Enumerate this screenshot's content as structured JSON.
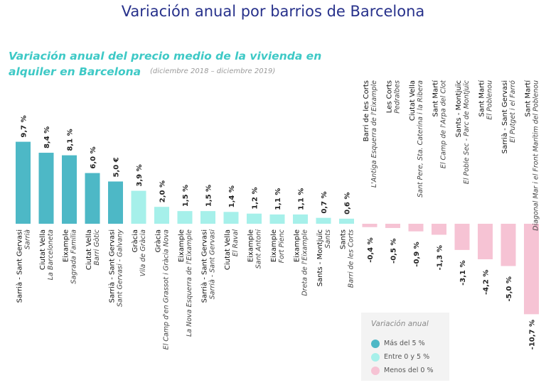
{
  "page_title": "Variación anual por barrios de Barcelona",
  "chart_title": "Variación anual del precio medio de la vivienda en alquiler en Barcelona",
  "chart_subtitle": "(diciembre 2018 – diciembre 2019)",
  "colors": {
    "high": "#4db8c6",
    "mid": "#a6f0ea",
    "negative": "#f6c3d4",
    "title": "#27318b",
    "chart_title": "#3ec9c6"
  },
  "legend": {
    "title": "Variación anual",
    "items": [
      {
        "label": "Más del 5 %",
        "color": "#4db8c6"
      },
      {
        "label": "Entre 0 y 5 %",
        "color": "#a6f0ea"
      },
      {
        "label": "Menos del 0 %",
        "color": "#f6c3d4"
      }
    ]
  },
  "chart_data": {
    "type": "bar",
    "categories": [
      {
        "district": "Sarrià - Sant Gervasi",
        "neighborhood": "Sarrià"
      },
      {
        "district": "Ciutat Vella",
        "neighborhood": "La Barceloneta"
      },
      {
        "district": "Eixample",
        "neighborhood": "Sagrada Família"
      },
      {
        "district": "Ciutat Vella",
        "neighborhood": "Barri Gòtic"
      },
      {
        "district": "Sarrià - Sant Gervasi",
        "neighborhood": "Sant Gervasi - Galvany"
      },
      {
        "district": "Gràcia",
        "neighborhood": "Vila de Gràcia"
      },
      {
        "district": "Gràcia",
        "neighborhood": "El Camp d'en Grassot i Gràcia Nova"
      },
      {
        "district": "Eixample",
        "neighborhood": "La Nova Esquerra de l'Eixample"
      },
      {
        "district": "Sarrià - Sant Gervasi",
        "neighborhood": "Sarrià - Sant Gervasi"
      },
      {
        "district": "Ciutat Vella",
        "neighborhood": "El Raval"
      },
      {
        "district": "Eixample",
        "neighborhood": "Sant Antoni"
      },
      {
        "district": "Eixample",
        "neighborhood": "Fort Pienc"
      },
      {
        "district": "Eixample",
        "neighborhood": "Dreta de l'Eixample"
      },
      {
        "district": "Sants - Montjuïc",
        "neighborhood": "Sants"
      },
      {
        "district": "Sants",
        "neighborhood": "Barri de les Corts"
      },
      {
        "district": "Barri de les Corts",
        "neighborhood": "L'Antiga Esquerra de l'Eixample"
      },
      {
        "district": "Les Corts",
        "neighborhood": "Pedralbes"
      },
      {
        "district": "Ciutat Vella",
        "neighborhood": "Sant Pere, Sta. Caterina i la Ribera"
      },
      {
        "district": "Sant Martí",
        "neighborhood": "El Camp de l'Arpa del Clot"
      },
      {
        "district": "Sants - Montjuïc",
        "neighborhood": "El Poble Sec - Parc de Montjuïc"
      },
      {
        "district": "Sant Martí",
        "neighborhood": "El Poblenou"
      },
      {
        "district": "Sarrià - Sant Gervasi",
        "neighborhood": "El Putget i el Farró"
      },
      {
        "district": "Sant Martí",
        "neighborhood": "Diagonal Mar i el Front Marítim del Poblenou"
      }
    ],
    "values": [
      9.7,
      8.4,
      8.1,
      6.0,
      5.0,
      3.9,
      2.0,
      1.5,
      1.5,
      1.4,
      1.2,
      1.1,
      1.1,
      0.7,
      0.6,
      -0.4,
      -0.5,
      -0.9,
      -1.3,
      -3.1,
      -4.2,
      -5.0,
      -10.7
    ],
    "value_labels": [
      "9,7 %",
      "8,4 %",
      "8,1 %",
      "6,0 %",
      "5,0 €",
      "3,9 %",
      "2,0 %",
      "1,5 %",
      "1,5 %",
      "1,4 %",
      "1,2 %",
      "1,1 %",
      "1,1 %",
      "0,7 %",
      "0,6 %",
      "-0,4 %",
      "-0,5 %",
      "-0,9 %",
      "-1,3 %",
      "-3,1 %",
      "-4,2 %",
      "-5,0 %",
      "-10,7 %"
    ],
    "color_groups": [
      "high",
      "high",
      "high",
      "high",
      "high",
      "mid",
      "mid",
      "mid",
      "mid",
      "mid",
      "mid",
      "mid",
      "mid",
      "mid",
      "mid",
      "negative",
      "negative",
      "negative",
      "negative",
      "negative",
      "negative",
      "negative",
      "negative"
    ],
    "legend_position": "bottom-right",
    "grid": false
  }
}
